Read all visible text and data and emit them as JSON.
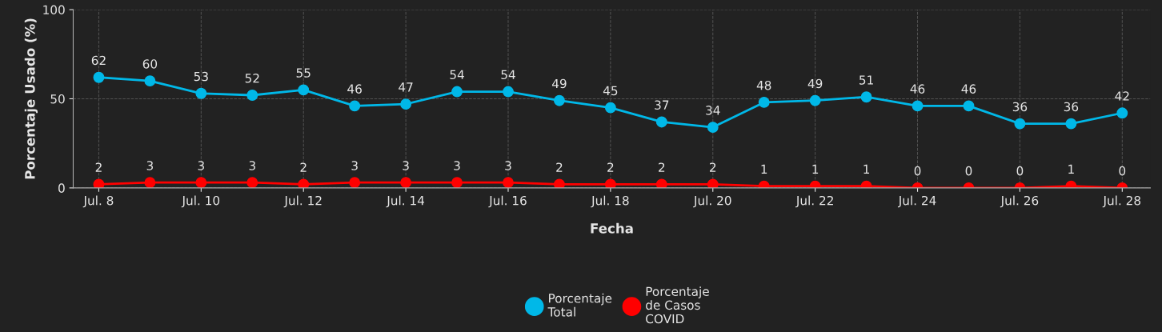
{
  "chart_data": {
    "type": "line",
    "xlabel": "Fecha",
    "ylabel": "Porcentaje Usado (%)",
    "categories": [
      "Jul. 8",
      null,
      "Jul. 10",
      null,
      "Jul. 12",
      null,
      "Jul. 14",
      null,
      "Jul. 16",
      null,
      "Jul. 18",
      null,
      "Jul. 20",
      null,
      "Jul. 22",
      null,
      "Jul. 24",
      null,
      "Jul. 26",
      null,
      "Jul. 28"
    ],
    "series": [
      {
        "name": "Porcentaje\nTotal",
        "color": "#00b8e8",
        "values": [
          62,
          60,
          53,
          52,
          55,
          46,
          47,
          54,
          54,
          49,
          45,
          37,
          34,
          48,
          49,
          51,
          46,
          46,
          36,
          36,
          42
        ]
      },
      {
        "name": "Porcentaje\nde Casos\nCOVID",
        "color": "#ff0000",
        "values": [
          2,
          3,
          3,
          3,
          2,
          3,
          3,
          3,
          3,
          2,
          2,
          2,
          2,
          1,
          1,
          1,
          0,
          0,
          0,
          1,
          0
        ]
      }
    ],
    "ylim": [
      0,
      100
    ],
    "yticks": [
      0,
      50,
      100
    ],
    "grid": true,
    "data_labels": true,
    "legend": "bottom",
    "marker": "circle",
    "line_style": "solid"
  }
}
